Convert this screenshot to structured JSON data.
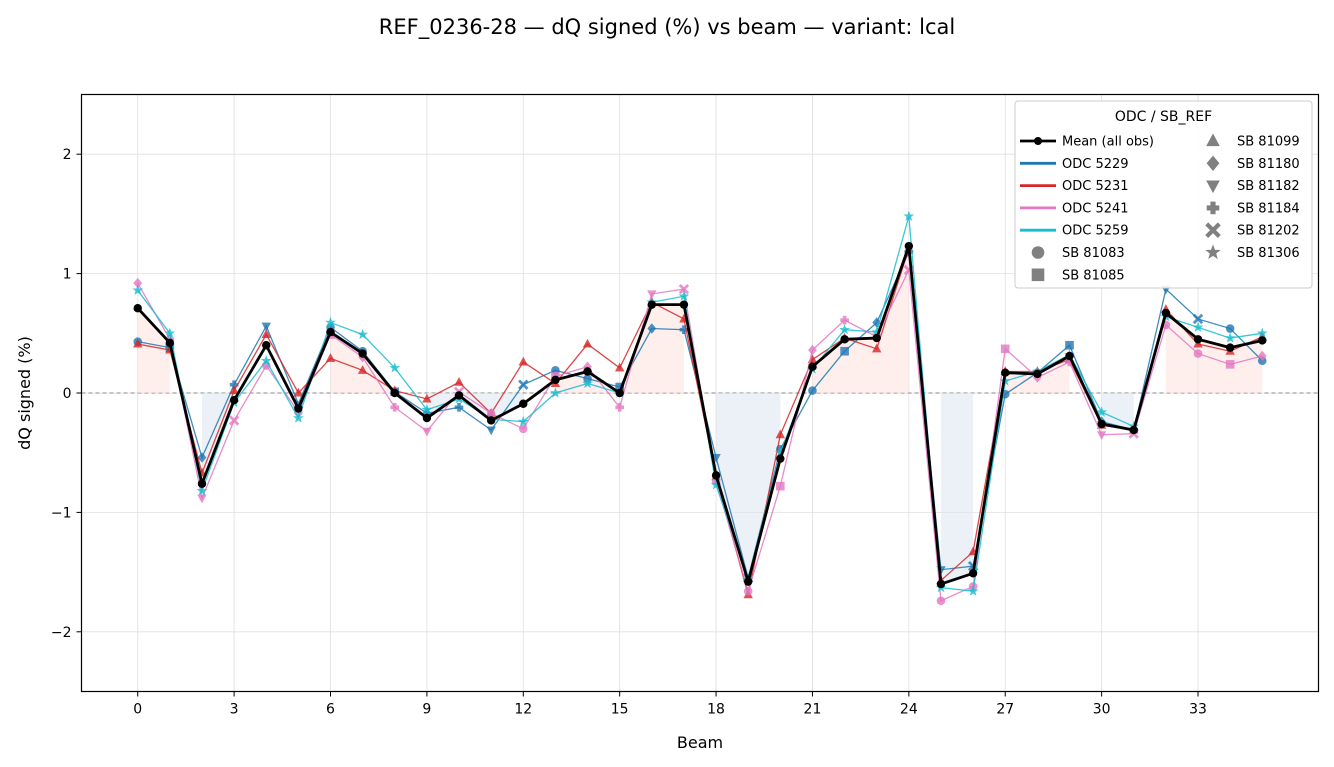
{
  "chart_data": {
    "type": "line",
    "title": "REF_0236-28  —  dQ signed (%) vs beam  —  variant: lcal",
    "xlabel": "Beam",
    "ylabel": "dQ signed (%)",
    "xlim": [
      -1.75,
      36.75
    ],
    "ylim": [
      -2.5,
      2.5
    ],
    "xticks": [
      0,
      3,
      6,
      9,
      12,
      15,
      18,
      21,
      24,
      27,
      30,
      33
    ],
    "yticks": [
      -2,
      -1,
      0,
      1,
      2
    ],
    "ytick_labels": [
      "−2",
      "−1",
      "0",
      "1",
      "2"
    ],
    "grid": true,
    "legend": {
      "title": "ODC / SB_REF",
      "placement": "top-right",
      "entries": [
        {
          "label": "Mean (all obs)",
          "kind": "mean"
        },
        {
          "label": "ODC 5229",
          "kind": "line",
          "color": "#1f77b4"
        },
        {
          "label": "ODC 5231",
          "kind": "line",
          "color": "#d62728"
        },
        {
          "label": "ODC 5241",
          "kind": "line",
          "color": "#e377c2"
        },
        {
          "label": "ODC 5259",
          "kind": "line",
          "color": "#17becf"
        },
        {
          "label": "SB 81083",
          "kind": "marker",
          "marker": "circle"
        },
        {
          "label": "SB 81085",
          "kind": "marker",
          "marker": "square"
        },
        {
          "label": "SB 81099",
          "kind": "marker",
          "marker": "triangle-up"
        },
        {
          "label": "SB 81180",
          "kind": "marker",
          "marker": "diamond"
        },
        {
          "label": "SB 81182",
          "kind": "marker",
          "marker": "triangle-down"
        },
        {
          "label": "SB 81184",
          "kind": "marker",
          "marker": "plus"
        },
        {
          "label": "SB 81202",
          "kind": "marker",
          "marker": "x"
        },
        {
          "label": "SB 81306",
          "kind": "marker",
          "marker": "star"
        }
      ]
    },
    "mean_series": {
      "name": "Mean (all obs)",
      "color": "#000000",
      "x": [
        0,
        1,
        2,
        3,
        4,
        5,
        6,
        7,
        8,
        9,
        10,
        11,
        12,
        13,
        14,
        15,
        16,
        17,
        18,
        19,
        20,
        21,
        22,
        23,
        24,
        25,
        26,
        27,
        28,
        29,
        30,
        31,
        32,
        33,
        34,
        35
      ],
      "values": [
        0.71,
        0.42,
        -0.76,
        -0.06,
        0.4,
        -0.13,
        0.51,
        0.33,
        0.0,
        -0.21,
        -0.02,
        -0.23,
        -0.09,
        0.11,
        0.18,
        0.0,
        0.74,
        0.74,
        -0.69,
        -1.58,
        -0.55,
        0.22,
        0.45,
        0.46,
        1.23,
        -1.6,
        -1.51,
        0.17,
        0.16,
        0.31,
        -0.26,
        -0.31,
        0.67,
        0.45,
        0.38,
        0.44
      ]
    },
    "series": [
      {
        "name": "ODC 5229",
        "color": "#1f77b4",
        "marker": "mixed",
        "x": [
          0,
          1,
          2,
          3,
          4,
          5,
          6,
          7,
          8,
          9,
          10,
          11,
          12,
          13,
          14,
          15,
          16,
          17,
          18,
          19,
          20,
          21,
          22,
          23,
          24,
          25,
          26,
          27,
          28,
          29,
          30,
          31,
          32,
          33,
          34,
          35
        ],
        "values": [
          0.43,
          0.38,
          -0.54,
          0.07,
          0.56,
          -0.09,
          0.55,
          0.35,
          0.01,
          -0.17,
          -0.12,
          -0.31,
          0.07,
          0.19,
          0.12,
          0.05,
          0.54,
          0.53,
          -0.54,
          -1.55,
          -0.47,
          0.02,
          0.35,
          0.59,
          1.18,
          -1.48,
          -1.45,
          -0.01,
          0.17,
          0.4,
          -0.24,
          -0.31,
          0.87,
          0.62,
          0.54,
          0.27
        ]
      },
      {
        "name": "ODC 5231",
        "color": "#d62728",
        "marker": "triangle-up",
        "x": [
          0,
          1,
          2,
          3,
          4,
          5,
          6,
          7,
          8,
          9,
          10,
          11,
          12,
          13,
          14,
          15,
          16,
          17,
          18,
          19,
          20,
          21,
          22,
          23,
          24,
          25,
          26,
          27,
          28,
          29,
          30,
          31,
          32,
          33,
          34,
          35
        ],
        "values": [
          0.41,
          0.36,
          -0.67,
          0.02,
          0.49,
          0.0,
          0.29,
          0.19,
          0.02,
          -0.05,
          0.09,
          -0.17,
          0.26,
          0.08,
          0.41,
          0.21,
          0.76,
          0.62,
          -0.7,
          -1.69,
          -0.35,
          0.28,
          0.46,
          0.37,
          1.21,
          -1.57,
          -1.33,
          0.18,
          0.18,
          0.28,
          -0.27,
          -0.31,
          0.7,
          0.41,
          0.35,
          0.47
        ]
      },
      {
        "name": "ODC 5241",
        "color": "#e377c2",
        "marker": "mixed",
        "x": [
          0,
          1,
          2,
          3,
          4,
          5,
          6,
          7,
          8,
          9,
          10,
          11,
          12,
          13,
          14,
          15,
          16,
          17,
          18,
          19,
          20,
          21,
          22,
          23,
          24,
          25,
          26,
          27,
          28,
          29,
          30,
          31,
          32,
          33,
          34,
          35
        ],
        "values": [
          0.92,
          0.45,
          -0.88,
          -0.23,
          0.23,
          -0.16,
          0.49,
          0.3,
          -0.12,
          -0.32,
          0.01,
          -0.17,
          -0.3,
          0.14,
          0.22,
          -0.12,
          0.83,
          0.87,
          -0.74,
          -1.66,
          -0.78,
          0.36,
          0.61,
          0.47,
          1.03,
          -1.74,
          -1.62,
          0.37,
          0.13,
          0.26,
          -0.35,
          -0.34,
          0.57,
          0.33,
          0.24,
          0.31
        ]
      },
      {
        "name": "ODC 5259",
        "color": "#17becf",
        "marker": "star",
        "x": [
          0,
          1,
          2,
          3,
          4,
          5,
          6,
          7,
          8,
          9,
          10,
          11,
          12,
          13,
          14,
          15,
          16,
          17,
          18,
          19,
          20,
          21,
          22,
          23,
          24,
          25,
          26,
          27,
          28,
          29,
          30,
          31,
          32,
          33,
          34,
          35
        ],
        "values": [
          0.86,
          0.5,
          -0.82,
          -0.08,
          0.27,
          -0.21,
          0.59,
          0.49,
          0.21,
          -0.14,
          -0.05,
          -0.22,
          -0.24,
          0.0,
          0.08,
          0.0,
          0.76,
          0.81,
          -0.77,
          -1.56,
          -0.5,
          0.2,
          0.53,
          0.51,
          1.48,
          -1.63,
          -1.66,
          0.1,
          0.18,
          0.32,
          -0.16,
          -0.28,
          0.64,
          0.55,
          0.46,
          0.5
        ]
      }
    ]
  }
}
